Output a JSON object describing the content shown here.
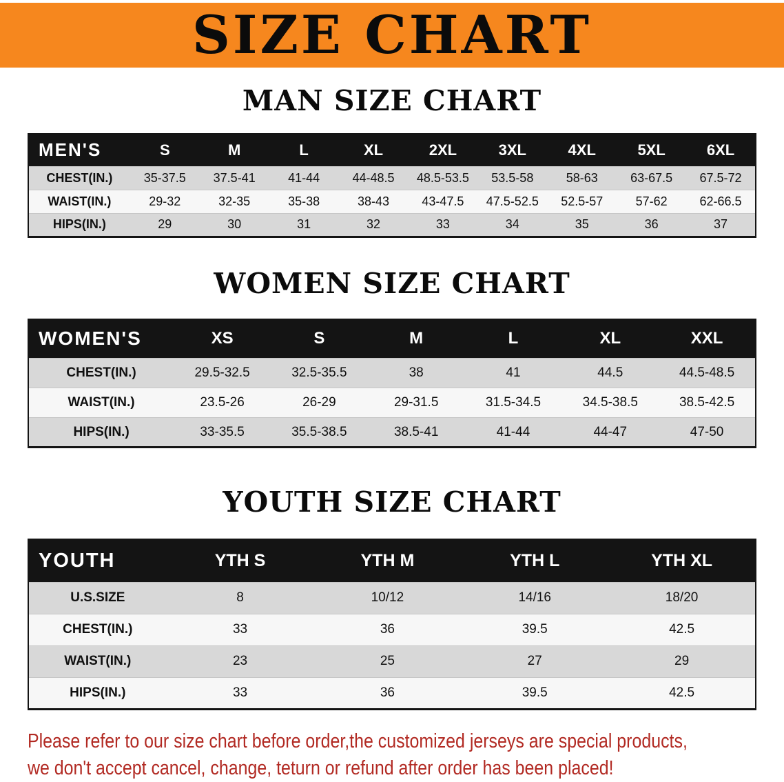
{
  "banner": {
    "title": "SIZE CHART"
  },
  "sections": [
    {
      "heading": "MAN SIZE CHART",
      "table": {
        "corner": "MEN'S",
        "columns": [
          "S",
          "M",
          "L",
          "XL",
          "2XL",
          "3XL",
          "4XL",
          "5XL",
          "6XL"
        ],
        "rows": [
          {
            "label": "CHEST(IN.)",
            "values": [
              "35-37.5",
              "37.5-41",
              "41-44",
              "44-48.5",
              "48.5-53.5",
              "53.5-58",
              "58-63",
              "63-67.5",
              "67.5-72"
            ]
          },
          {
            "label": "WAIST(IN.)",
            "values": [
              "29-32",
              "32-35",
              "35-38",
              "38-43",
              "43-47.5",
              "47.5-52.5",
              "52.5-57",
              "57-62",
              "62-66.5"
            ]
          },
          {
            "label": "HIPS(IN.)",
            "values": [
              "29",
              "30",
              "31",
              "32",
              "33",
              "34",
              "35",
              "36",
              "37"
            ]
          }
        ]
      }
    },
    {
      "heading": "WOMEN SIZE CHART",
      "table": {
        "corner": "WOMEN'S",
        "columns": [
          "XS",
          "S",
          "M",
          "L",
          "XL",
          "XXL"
        ],
        "rows": [
          {
            "label": "CHEST(IN.)",
            "values": [
              "29.5-32.5",
              "32.5-35.5",
              "38",
              "41",
              "44.5",
              "44.5-48.5"
            ]
          },
          {
            "label": "WAIST(IN.)",
            "values": [
              "23.5-26",
              "26-29",
              "29-31.5",
              "31.5-34.5",
              "34.5-38.5",
              "38.5-42.5"
            ]
          },
          {
            "label": "HIPS(IN.)",
            "values": [
              "33-35.5",
              "35.5-38.5",
              "38.5-41",
              "41-44",
              "44-47",
              "47-50"
            ]
          }
        ]
      }
    },
    {
      "heading": "YOUTH SIZE CHART",
      "table": {
        "corner": "YOUTH",
        "columns": [
          "YTH S",
          "YTH M",
          "YTH L",
          "YTH XL"
        ],
        "rows": [
          {
            "label": "U.S.SIZE",
            "values": [
              "8",
              "10/12",
              "14/16",
              "18/20"
            ]
          },
          {
            "label": "CHEST(IN.)",
            "values": [
              "33",
              "36",
              "39.5",
              "42.5"
            ]
          },
          {
            "label": "WAIST(IN.)",
            "values": [
              "23",
              "25",
              "27",
              "29"
            ]
          },
          {
            "label": "HIPS(IN.)",
            "values": [
              "33",
              "36",
              "39.5",
              "42.5"
            ]
          }
        ]
      }
    }
  ],
  "disclaimer": {
    "line1": "Please refer to our size chart before order,the customized jerseys are special products,",
    "line2": "we don't accept cancel, change, teturn or refund after order has been placed!"
  },
  "colors": {
    "banner_orange": "#F6871E",
    "header_black": "#141414",
    "row_gray": "#D8D8D8",
    "row_white": "#F7F7F7",
    "disclaimer_red": "#B22A23"
  }
}
